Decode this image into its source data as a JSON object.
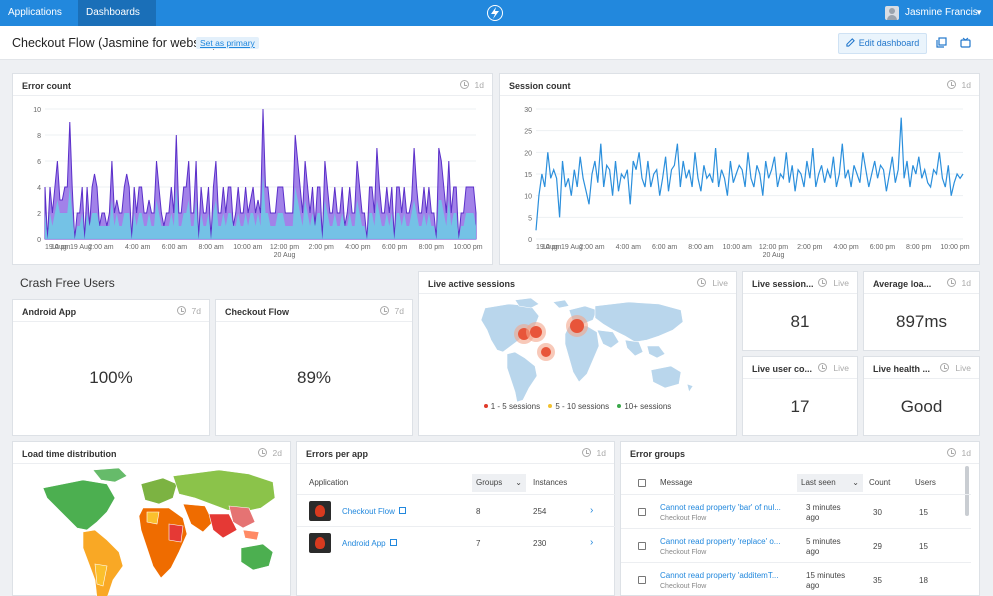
{
  "topbar": {
    "applications_label": "Applications",
    "dashboards_label": "Dashboards",
    "user_name": "Jasmine Francis",
    "logo_icon": "lightning-bolt-icon",
    "accent_color": "#2288dd"
  },
  "header": {
    "title": "Checkout Flow (Jasmine for website)",
    "set_primary_label": "Set as primary",
    "edit_button_label": "Edit dashboard"
  },
  "error_count": {
    "title": "Error count",
    "period": "1d",
    "chart_data": {
      "type": "area",
      "y_ticks": [
        "10",
        "8",
        "6",
        "4",
        "2",
        "0"
      ],
      "ylim": [
        0,
        10
      ],
      "x_ticks": [
        "19 Aug",
        "10 pm",
        "19 Aug",
        "2:00 am",
        "4:00 am",
        "6:00 am",
        "8:00 am",
        "10:00 am",
        "12:00 pm",
        "2:00 pm",
        "4:00 pm",
        "6:00 pm",
        "8:00 pm",
        "10:00 pm"
      ],
      "x_subtick": "20 Aug",
      "series": [
        {
          "color": "#7b4de0",
          "values": [
            4,
            0,
            4,
            2,
            4,
            6,
            3,
            3,
            4,
            4,
            9,
            4,
            0,
            2,
            2,
            4,
            0,
            4,
            1,
            4,
            5,
            4,
            1,
            2,
            2,
            1,
            2,
            6,
            2,
            3,
            2,
            2,
            4,
            5,
            4,
            0,
            4,
            2,
            4,
            4,
            2,
            2,
            3,
            2,
            2,
            6,
            4,
            2,
            1,
            2,
            2,
            4,
            2,
            8,
            2,
            2,
            4,
            4,
            6,
            2,
            2,
            6,
            0,
            4,
            2,
            2,
            4,
            0,
            4,
            6,
            2,
            2,
            4,
            2,
            4,
            4,
            1,
            2,
            4,
            2,
            2,
            4,
            2,
            3,
            4,
            2,
            3,
            2,
            10,
            4,
            4,
            2,
            2,
            2,
            4,
            4,
            4,
            2,
            2,
            2,
            2,
            8,
            6,
            4,
            2,
            6,
            4,
            2,
            4,
            1,
            4,
            4,
            0,
            6,
            4,
            2,
            2,
            4,
            2,
            2,
            4,
            1,
            2,
            4,
            2,
            2,
            6,
            4,
            2,
            2,
            0,
            4,
            4,
            2,
            7,
            4,
            2,
            2,
            4,
            2,
            4,
            0,
            4,
            4,
            2,
            4,
            2,
            2,
            3,
            7,
            4,
            2,
            2,
            4,
            2,
            4,
            2,
            2,
            0,
            7,
            6,
            4,
            2,
            6,
            2,
            4,
            4,
            0,
            2,
            2,
            4,
            4,
            4,
            4,
            2
          ]
        },
        {
          "color": "#6fc9e6",
          "values": [
            2,
            0,
            2,
            1,
            2,
            3,
            2,
            2,
            2,
            2,
            4,
            2,
            0,
            1,
            1,
            2,
            0,
            2,
            1,
            2,
            2,
            2,
            1,
            1,
            1,
            1,
            1,
            3,
            1,
            2,
            1,
            1,
            2,
            2,
            2,
            0,
            2,
            1,
            2,
            2,
            1,
            1,
            2,
            1,
            1,
            3,
            2,
            1,
            1,
            1,
            1,
            2,
            1,
            4,
            1,
            1,
            2,
            2,
            3,
            1,
            1,
            3,
            0,
            2,
            1,
            1,
            2,
            0,
            2,
            3,
            1,
            1,
            2,
            1,
            2,
            2,
            1,
            1,
            2,
            1,
            1,
            2,
            1,
            2,
            2,
            1,
            2,
            1,
            5,
            2,
            2,
            1,
            1,
            1,
            2,
            2,
            2,
            1,
            1,
            1,
            1,
            4,
            3,
            2,
            1,
            3,
            2,
            1,
            2,
            1,
            2,
            2,
            0,
            3,
            2,
            1,
            1,
            2,
            1,
            1,
            2,
            1,
            1,
            2,
            1,
            1,
            3,
            2,
            1,
            1,
            0,
            2,
            2,
            1,
            3,
            2,
            1,
            1,
            2,
            1,
            2,
            0,
            2,
            2,
            1,
            2,
            1,
            1,
            2,
            3,
            2,
            1,
            1,
            2,
            1,
            2,
            1,
            1,
            0,
            3,
            3,
            2,
            1,
            3,
            1,
            2,
            2,
            0,
            1,
            1,
            2,
            2,
            2,
            2,
            1
          ]
        }
      ]
    }
  },
  "session_count": {
    "title": "Session count",
    "period": "1d",
    "chart_data": {
      "type": "line",
      "y_ticks": [
        "30",
        "25",
        "20",
        "15",
        "10",
        "5",
        "0"
      ],
      "ylim": [
        0,
        30
      ],
      "x_ticks": [
        "19 Aug",
        "10 pm",
        "19 Aug",
        "2:00 am",
        "4:00 am",
        "6:00 am",
        "8:00 am",
        "10:00 am",
        "12:00 pm",
        "2:00 pm",
        "4:00 pm",
        "6:00 pm",
        "8:00 pm",
        "10:00 pm"
      ],
      "x_subtick": "20 Aug",
      "color": "#2b8fdc",
      "values": [
        2,
        10,
        15,
        12,
        20,
        14,
        16,
        14,
        5,
        18,
        12,
        14,
        10,
        16,
        12,
        19,
        14,
        11,
        8,
        15,
        18,
        13,
        22,
        12,
        17,
        16,
        10,
        18,
        11,
        15,
        14,
        16,
        8,
        18,
        16,
        20,
        14,
        12,
        18,
        12,
        15,
        16,
        10,
        14,
        19,
        11,
        16,
        17,
        22,
        12,
        18,
        14,
        16,
        12,
        20,
        14,
        11,
        17,
        14,
        15,
        13,
        21,
        12,
        16,
        14,
        10,
        18,
        13,
        15,
        17,
        16,
        12,
        20,
        14,
        12,
        17,
        15,
        10,
        18,
        14,
        16,
        19,
        12,
        15,
        14,
        20,
        13,
        17,
        11,
        16,
        15,
        12,
        18,
        14,
        21,
        12,
        15,
        17,
        13,
        16,
        14,
        19,
        12,
        15,
        22,
        14,
        16,
        12,
        17,
        15,
        13,
        20,
        16,
        12,
        15,
        18,
        14,
        17,
        16,
        11,
        15,
        19,
        13,
        16,
        28,
        14,
        18,
        12,
        17,
        15,
        19,
        14,
        16,
        13,
        12,
        16,
        15,
        20,
        14,
        12,
        17,
        10,
        13,
        15,
        14,
        15
      ]
    }
  },
  "crash_free": {
    "section_title": "Crash Free Users",
    "android": {
      "title": "Android App",
      "period": "7d",
      "value": "100%"
    },
    "checkout": {
      "title": "Checkout Flow",
      "period": "7d",
      "value": "89%"
    }
  },
  "live_sessions_map": {
    "title": "Live active sessions",
    "period": "Live",
    "legend": [
      {
        "label": "1 - 5 sessions",
        "color": "#e03a2a"
      },
      {
        "label": "5 - 10 sessions",
        "color": "#f2c12e"
      },
      {
        "label": "10+ sessions",
        "color": "#3aa84a"
      }
    ]
  },
  "stats": {
    "live_sessions": {
      "title": "Live session...",
      "period": "Live",
      "value": "81"
    },
    "average_load": {
      "title": "Average loa...",
      "period": "1d",
      "value": "897ms"
    },
    "live_users": {
      "title": "Live user co...",
      "period": "Live",
      "value": "17"
    },
    "live_health": {
      "title": "Live health ...",
      "period": "Live",
      "value": "Good"
    }
  },
  "load_time": {
    "title": "Load time distribution",
    "period": "2d"
  },
  "errors_per_app": {
    "title": "Errors per app",
    "period": "1d",
    "columns": {
      "application": "Application",
      "groups": "Groups",
      "instances": "Instances"
    },
    "rows": [
      {
        "name": "Checkout Flow",
        "groups": "8",
        "instances": "254"
      },
      {
        "name": "Android App",
        "groups": "7",
        "instances": "230"
      }
    ]
  },
  "error_groups": {
    "title": "Error groups",
    "period": "1d",
    "columns": {
      "message": "Message",
      "last_seen": "Last seen",
      "count": "Count",
      "users": "Users"
    },
    "rows": [
      {
        "message": "Cannot read property 'bar' of nul...",
        "app": "Checkout Flow",
        "last_seen_1": "3 minutes",
        "last_seen_2": "ago",
        "count": "30",
        "users": "15"
      },
      {
        "message": "Cannot read property 'replace' o...",
        "app": "Checkout Flow",
        "last_seen_1": "5 minutes",
        "last_seen_2": "ago",
        "count": "29",
        "users": "15"
      },
      {
        "message": "Cannot read property 'additemT...",
        "app": "Checkout Flow",
        "last_seen_1": "15 minutes",
        "last_seen_2": "ago",
        "count": "35",
        "users": "18"
      }
    ]
  }
}
